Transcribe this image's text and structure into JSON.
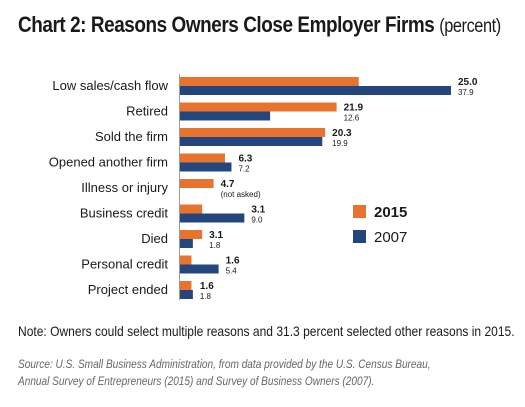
{
  "title": "Chart 2: Reasons Owners Close Employer Firms",
  "subtitle": "(percent)",
  "note": "Note: Owners could select multiple reasons and 31.3 percent selected other reasons in 2015.",
  "source_line1": "Source: U.S. Small Business Administration, from data provided by the U.S. Census Bureau,",
  "source_line2": "Annual Survey of Entrepreneurs (2015) and Survey of Business Owners (2007).",
  "colors": {
    "s2015": "#E8732E",
    "s2007": "#24467F"
  },
  "chart_data": {
    "type": "bar",
    "orientation": "horizontal",
    "categories": [
      "Low sales/cash flow",
      "Retired",
      "Sold the firm",
      "Opened another firm",
      "Illness or injury",
      "Business credit",
      "Died",
      "Personal credit",
      "Project ended"
    ],
    "series": [
      {
        "name": "2015",
        "values": [
          25.0,
          21.9,
          20.3,
          6.3,
          4.7,
          3.1,
          3.1,
          1.6,
          1.6
        ],
        "labels": [
          "25.0",
          "21.9",
          "20.3",
          "6.3",
          "4.7",
          "3.1",
          "3.1",
          "1.6",
          "1.6"
        ]
      },
      {
        "name": "2007",
        "values": [
          37.9,
          12.6,
          19.9,
          7.2,
          null,
          9.0,
          1.8,
          5.4,
          1.8
        ],
        "labels": [
          "37.9",
          "12.6",
          "19.9",
          "7.2",
          "(not asked)",
          "9.0",
          "1.8",
          "5.4",
          "1.8"
        ]
      }
    ],
    "legend_position": "right",
    "grid": false
  }
}
